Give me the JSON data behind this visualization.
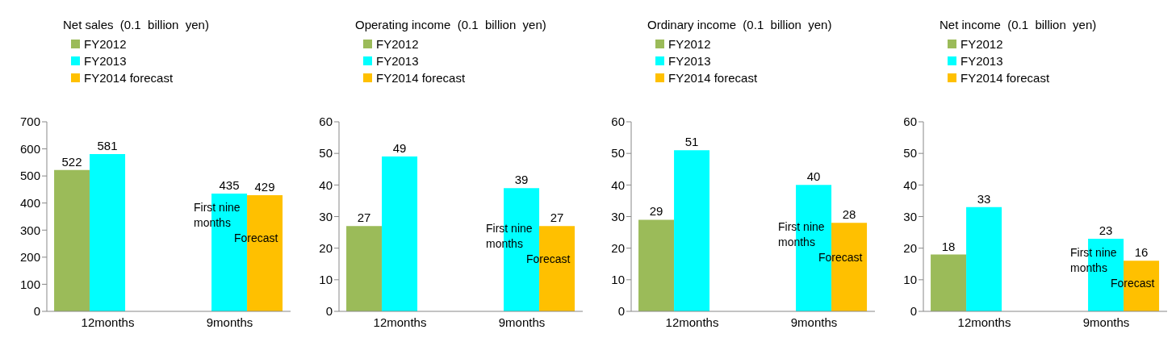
{
  "chart_data": [
    {
      "type": "bar",
      "title": "Net sales  (0.1  billion  yen)",
      "categories": [
        "12months",
        "9months"
      ],
      "series": [
        {
          "name": "FY2012",
          "color": "#9bbb59",
          "values": [
            522,
            null
          ]
        },
        {
          "name": "FY2013",
          "color": "#00ffff",
          "values": [
            581,
            435
          ]
        },
        {
          "name": "FY2014 forecast",
          "color": "#ffc000",
          "values": [
            null,
            429
          ]
        }
      ],
      "ylim": [
        0,
        700
      ],
      "yticks": [
        0,
        100,
        200,
        300,
        400,
        500,
        600,
        700
      ],
      "grid": false,
      "legend": "top left",
      "data_labels": true,
      "annotations": [
        "First nine months",
        "Forecast"
      ]
    },
    {
      "type": "bar",
      "title": "Operating income  (0.1  billion  yen)",
      "categories": [
        "12months",
        "9months"
      ],
      "series": [
        {
          "name": "FY2012",
          "color": "#9bbb59",
          "values": [
            27,
            null
          ]
        },
        {
          "name": "FY2013",
          "color": "#00ffff",
          "values": [
            49,
            39
          ]
        },
        {
          "name": "FY2014 forecast",
          "color": "#ffc000",
          "values": [
            null,
            27
          ]
        }
      ],
      "ylim": [
        0,
        60
      ],
      "yticks": [
        0,
        10,
        20,
        30,
        40,
        50,
        60
      ],
      "grid": false,
      "legend": "top left",
      "data_labels": true,
      "annotations": [
        "First nine months",
        "Forecast"
      ]
    },
    {
      "type": "bar",
      "title": "Ordinary income  (0.1  billion  yen)",
      "categories": [
        "12months",
        "9months"
      ],
      "series": [
        {
          "name": "FY2012",
          "color": "#9bbb59",
          "values": [
            29,
            null
          ]
        },
        {
          "name": "FY2013",
          "color": "#00ffff",
          "values": [
            51,
            40
          ]
        },
        {
          "name": "FY2014 forecast",
          "color": "#ffc000",
          "values": [
            null,
            28
          ]
        }
      ],
      "ylim": [
        0,
        60
      ],
      "yticks": [
        0,
        10,
        20,
        30,
        40,
        50,
        60
      ],
      "grid": false,
      "legend": "top left",
      "data_labels": true,
      "annotations": [
        "First nine months",
        "Forecast"
      ]
    },
    {
      "type": "bar",
      "title": "Net income  (0.1  billion  yen)",
      "categories": [
        "12months",
        "9months"
      ],
      "series": [
        {
          "name": "FY2012",
          "color": "#9bbb59",
          "values": [
            18,
            null
          ]
        },
        {
          "name": "FY2013",
          "color": "#00ffff",
          "values": [
            33,
            23
          ]
        },
        {
          "name": "FY2014 forecast",
          "color": "#ffc000",
          "values": [
            null,
            16
          ]
        }
      ],
      "ylim": [
        0,
        60
      ],
      "yticks": [
        0,
        10,
        20,
        30,
        40,
        50,
        60
      ],
      "grid": false,
      "legend": "top left",
      "data_labels": true,
      "annotations": [
        "First nine months",
        "Forecast"
      ]
    }
  ]
}
